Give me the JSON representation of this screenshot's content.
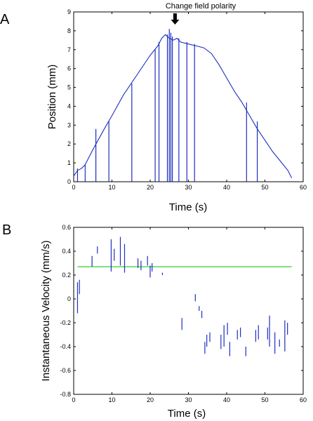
{
  "figure": {
    "panel_a_label": "A",
    "panel_b_label": "B",
    "colors": {
      "trace": "#1f2fbf",
      "reference_line": "#33cc33",
      "axis": "#000000"
    }
  },
  "chart_data": [
    {
      "type": "line",
      "panel": "A",
      "xlabel": "Time (s)",
      "ylabel": "Position (mm)",
      "xlim": [
        0,
        60
      ],
      "ylim": [
        0,
        9
      ],
      "xticks": [
        0,
        10,
        20,
        30,
        40,
        50,
        60
      ],
      "yticks": [
        0,
        1,
        2,
        3,
        4,
        5,
        6,
        7,
        8,
        9
      ],
      "grid": false,
      "annotation": {
        "text": "Change field polarity",
        "x": 26.5
      },
      "series": [
        {
          "x": [
            0,
            1,
            2,
            3,
            5,
            8,
            10,
            13,
            15,
            18,
            20,
            22,
            23,
            24,
            25,
            26,
            27,
            28,
            30,
            32,
            34,
            36,
            38,
            40,
            42,
            44,
            46,
            48,
            50,
            52,
            54,
            56,
            57
          ],
          "y": [
            0.3,
            0.6,
            0.7,
            0.9,
            1.7,
            2.8,
            3.5,
            4.6,
            5.2,
            6.1,
            6.7,
            7.2,
            7.6,
            7.8,
            7.6,
            7.5,
            7.6,
            7.4,
            7.3,
            7.2,
            7.1,
            6.8,
            6.2,
            5.5,
            4.8,
            4.2,
            3.5,
            2.8,
            2.2,
            1.6,
            1.1,
            0.6,
            0.2
          ]
        }
      ],
      "spikes": [
        {
          "x": 1.0,
          "top": 0.7
        },
        {
          "x": 3.0,
          "top": 0.9
        },
        {
          "x": 5.8,
          "top": 2.8
        },
        {
          "x": 9.2,
          "top": 3.2
        },
        {
          "x": 15.2,
          "top": 5.2
        },
        {
          "x": 21.3,
          "top": 7.0
        },
        {
          "x": 22.3,
          "top": 7.4
        },
        {
          "x": 24.5,
          "top": 7.8
        },
        {
          "x": 25.0,
          "top": 8.1
        },
        {
          "x": 25.4,
          "top": 7.9
        },
        {
          "x": 25.8,
          "top": 7.7
        },
        {
          "x": 27.5,
          "top": 7.6
        },
        {
          "x": 29.6,
          "top": 7.4
        },
        {
          "x": 31.6,
          "top": 7.3
        },
        {
          "x": 45.2,
          "top": 4.2
        },
        {
          "x": 48.0,
          "top": 3.2
        }
      ]
    },
    {
      "type": "scatter",
      "panel": "B",
      "xlabel": "Time (s)",
      "ylabel": "Instantaneous Velocity (mm/s)",
      "xlim": [
        0,
        60
      ],
      "ylim": [
        -0.8,
        0.6
      ],
      "xticks": [
        0,
        10,
        20,
        30,
        40,
        50,
        60
      ],
      "yticks": [
        -0.8,
        -0.6,
        -0.4,
        -0.2,
        0,
        0.2,
        0.4,
        0.6
      ],
      "grid": false,
      "reference_line": {
        "y": 0.27,
        "x_start": 1,
        "x_end": 57
      },
      "series": [
        {
          "segments": [
            {
              "x": 1.0,
              "y1": -0.12,
              "y2": 0.14
            },
            {
              "x": 1.5,
              "y1": 0.04,
              "y2": 0.16
            },
            {
              "x": 4.8,
              "y1": 0.27,
              "y2": 0.36
            },
            {
              "x": 6.2,
              "y1": 0.38,
              "y2": 0.44
            },
            {
              "x": 9.8,
              "y1": 0.23,
              "y2": 0.5
            },
            {
              "x": 10.6,
              "y1": 0.32,
              "y2": 0.42
            },
            {
              "x": 12.2,
              "y1": 0.28,
              "y2": 0.52
            },
            {
              "x": 13.3,
              "y1": 0.22,
              "y2": 0.46
            },
            {
              "x": 16.8,
              "y1": 0.26,
              "y2": 0.34
            },
            {
              "x": 17.6,
              "y1": 0.24,
              "y2": 0.32
            },
            {
              "x": 19.3,
              "y1": 0.28,
              "y2": 0.36
            },
            {
              "x": 20.0,
              "y1": 0.18,
              "y2": 0.28
            },
            {
              "x": 20.5,
              "y1": 0.23,
              "y2": 0.3
            },
            {
              "x": 23.2,
              "y1": 0.2,
              "y2": 0.22
            },
            {
              "x": 28.3,
              "y1": -0.26,
              "y2": -0.16
            },
            {
              "x": 31.8,
              "y1": -0.02,
              "y2": 0.04
            },
            {
              "x": 32.8,
              "y1": -0.1,
              "y2": -0.06
            },
            {
              "x": 33.5,
              "y1": -0.16,
              "y2": -0.1
            },
            {
              "x": 34.3,
              "y1": -0.46,
              "y2": -0.36
            },
            {
              "x": 34.8,
              "y1": -0.4,
              "y2": -0.3
            },
            {
              "x": 35.6,
              "y1": -0.36,
              "y2": -0.28
            },
            {
              "x": 38.5,
              "y1": -0.42,
              "y2": -0.3
            },
            {
              "x": 39.3,
              "y1": -0.4,
              "y2": -0.22
            },
            {
              "x": 40.2,
              "y1": -0.3,
              "y2": -0.2
            },
            {
              "x": 40.8,
              "y1": -0.48,
              "y2": -0.36
            },
            {
              "x": 42.8,
              "y1": -0.34,
              "y2": -0.26
            },
            {
              "x": 43.6,
              "y1": -0.32,
              "y2": -0.24
            },
            {
              "x": 45.0,
              "y1": -0.48,
              "y2": -0.4
            },
            {
              "x": 47.6,
              "y1": -0.36,
              "y2": -0.26
            },
            {
              "x": 48.3,
              "y1": -0.34,
              "y2": -0.22
            },
            {
              "x": 50.7,
              "y1": -0.34,
              "y2": -0.24
            },
            {
              "x": 51.2,
              "y1": -0.4,
              "y2": -0.14
            },
            {
              "x": 52.6,
              "y1": -0.46,
              "y2": -0.28
            },
            {
              "x": 53.8,
              "y1": -0.4,
              "y2": -0.34
            },
            {
              "x": 55.2,
              "y1": -0.44,
              "y2": -0.18
            },
            {
              "x": 55.9,
              "y1": -0.3,
              "y2": -0.2
            }
          ]
        }
      ]
    }
  ]
}
